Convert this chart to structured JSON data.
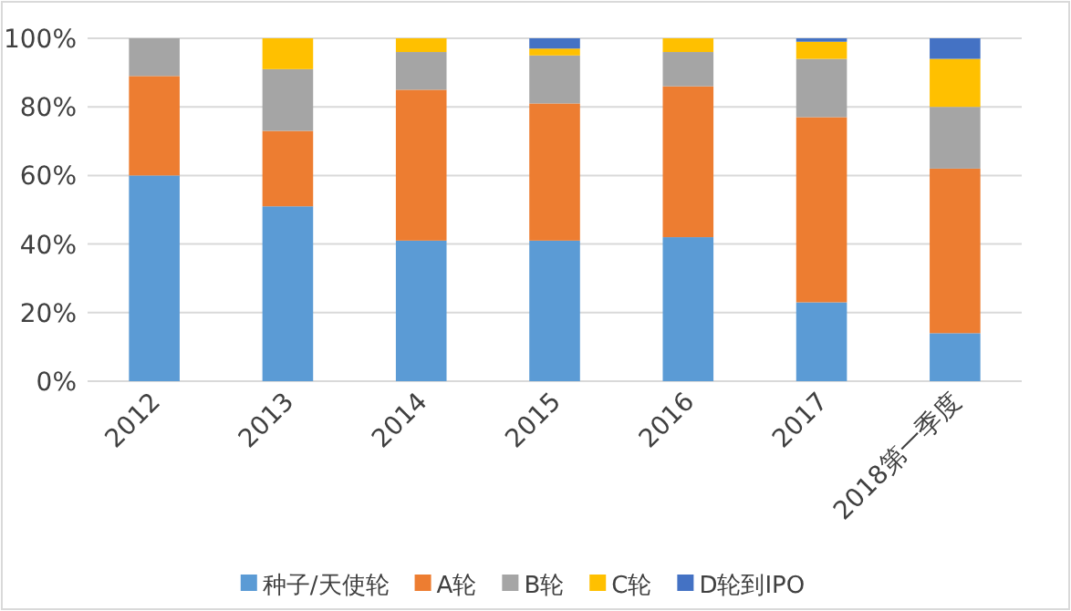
{
  "chart_data": {
    "type": "bar",
    "stacked": true,
    "categories": [
      "2012",
      "2013",
      "2014",
      "2015",
      "2016",
      "2017",
      "2018第一季度"
    ],
    "series": [
      {
        "name": "种子/天使轮",
        "color": "#5b9bd5",
        "values": [
          60,
          51,
          41,
          41,
          42,
          23,
          14
        ]
      },
      {
        "name": "A轮",
        "color": "#ed7d31",
        "values": [
          29,
          22,
          44,
          40,
          44,
          54,
          48
        ]
      },
      {
        "name": "B轮",
        "color": "#a5a5a5",
        "values": [
          11,
          18,
          11,
          14,
          10,
          17,
          18
        ]
      },
      {
        "name": "C轮",
        "color": "#ffc000",
        "values": [
          0,
          9,
          4,
          2,
          4,
          5,
          14
        ]
      },
      {
        "name": "D轮到IPO",
        "color": "#4472c4",
        "values": [
          0,
          0,
          0,
          3,
          0,
          1,
          6
        ]
      }
    ],
    "ylim": [
      0,
      100
    ],
    "yticks": [
      {
        "value": 0,
        "label": "0%"
      },
      {
        "value": 20,
        "label": "20%"
      },
      {
        "value": 40,
        "label": "40%"
      },
      {
        "value": 60,
        "label": "60%"
      },
      {
        "value": 80,
        "label": "80%"
      },
      {
        "value": 100,
        "label": "100%"
      }
    ],
    "grid": "y",
    "legend": "bottom"
  }
}
